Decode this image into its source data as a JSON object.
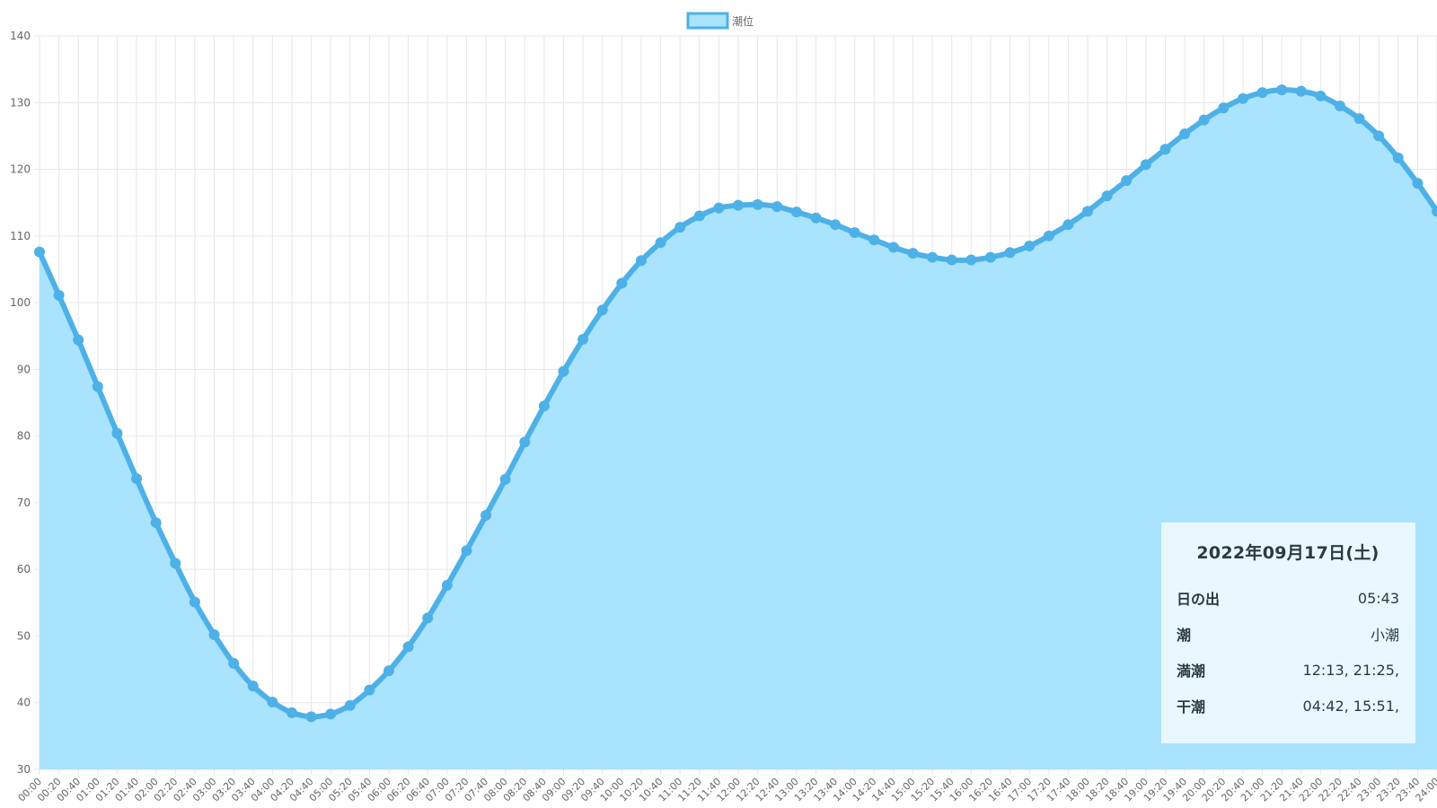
{
  "chart_data": {
    "type": "area",
    "legend": {
      "label": "潮位",
      "position": "top"
    },
    "colors": {
      "line": "#4db1e8",
      "fill": "#aae3fd",
      "grid": "#e6e6e6"
    },
    "ylim": [
      30,
      140
    ],
    "yticks": [
      30,
      40,
      50,
      60,
      70,
      80,
      90,
      100,
      110,
      120,
      130,
      140
    ],
    "grid": true,
    "x": [
      "00:00",
      "00:20",
      "00:40",
      "01:00",
      "01:20",
      "01:40",
      "02:00",
      "02:20",
      "02:40",
      "03:00",
      "03:20",
      "03:40",
      "04:00",
      "04:20",
      "04:40",
      "05:00",
      "05:20",
      "05:40",
      "06:00",
      "06:20",
      "06:40",
      "07:00",
      "07:20",
      "07:40",
      "08:00",
      "08:20",
      "08:40",
      "09:00",
      "09:20",
      "09:40",
      "10:00",
      "10:20",
      "10:40",
      "11:00",
      "11:20",
      "11:40",
      "12:00",
      "12:20",
      "12:40",
      "13:00",
      "13:20",
      "13:40",
      "14:00",
      "14:20",
      "14:40",
      "15:00",
      "15:20",
      "15:40",
      "16:00",
      "16:20",
      "16:40",
      "17:00",
      "17:20",
      "17:40",
      "18:00",
      "18:20",
      "18:40",
      "19:00",
      "19:20",
      "19:40",
      "20:00",
      "20:20",
      "20:40",
      "21:00",
      "21:20",
      "21:40",
      "22:00",
      "22:20",
      "22:40",
      "23:00",
      "23:20",
      "23:40",
      "24:00"
    ],
    "series": [
      {
        "name": "潮位",
        "values": [
          107.6,
          101.1,
          94.4,
          87.4,
          80.4,
          73.6,
          67.0,
          60.9,
          55.1,
          50.2,
          45.9,
          42.5,
          40.1,
          38.5,
          37.9,
          38.3,
          39.6,
          41.9,
          44.8,
          48.4,
          52.7,
          57.6,
          62.8,
          68.1,
          73.5,
          79.1,
          84.5,
          89.7,
          94.5,
          98.9,
          102.9,
          106.3,
          109.0,
          111.3,
          113.0,
          114.2,
          114.6,
          114.7,
          114.4,
          113.6,
          112.7,
          111.7,
          110.5,
          109.4,
          108.3,
          107.4,
          106.8,
          106.4,
          106.4,
          106.8,
          107.5,
          108.5,
          110.0,
          111.7,
          113.7,
          116.0,
          118.3,
          120.7,
          123.0,
          125.3,
          127.4,
          129.2,
          130.6,
          131.5,
          131.9,
          131.7,
          131.0,
          129.5,
          127.6,
          125.0,
          121.7,
          117.9,
          113.7
        ]
      }
    ]
  },
  "info": {
    "date": "2022年09月17日(土)",
    "rows": [
      {
        "label": "日の出",
        "value": "05:43"
      },
      {
        "label": "潮",
        "value": "小潮"
      },
      {
        "label": "満潮",
        "value": "12:13, 21:25,"
      },
      {
        "label": "干潮",
        "value": "04:42, 15:51,"
      }
    ]
  }
}
